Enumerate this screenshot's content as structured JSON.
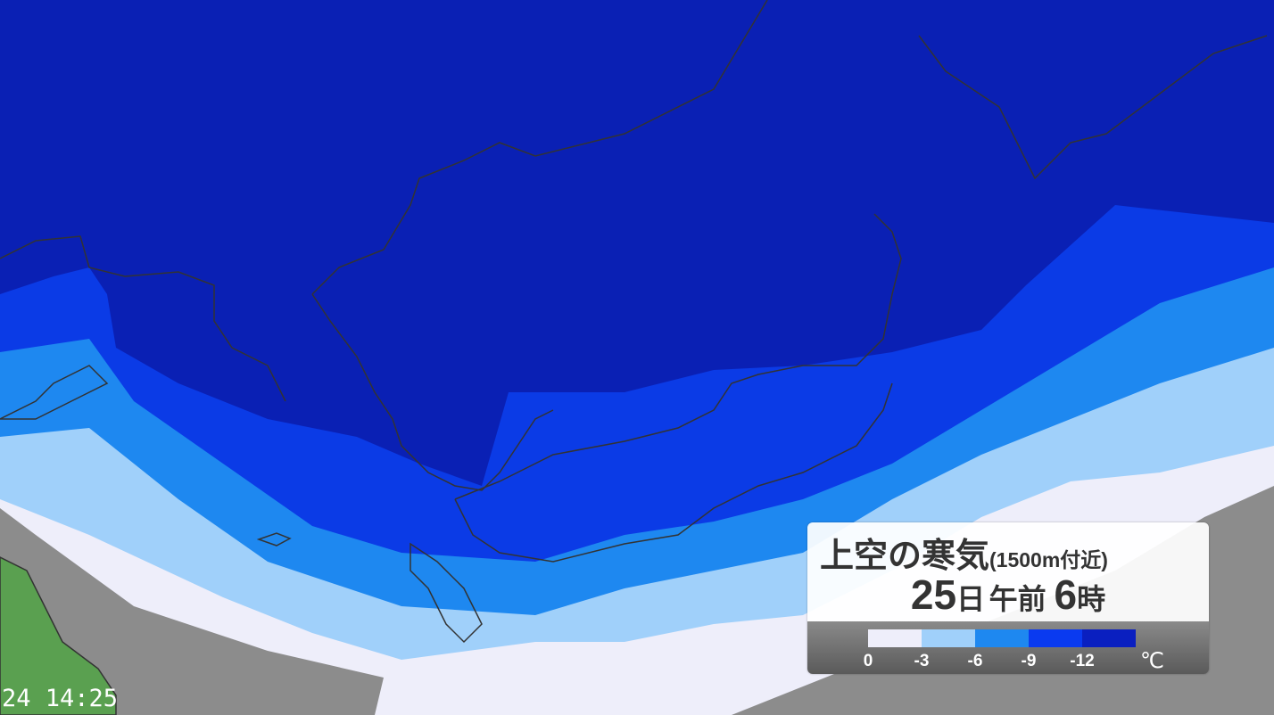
{
  "timestamp": "24 14:25",
  "legend": {
    "title": "上空の寒気",
    "subtitle": "(1500m付近)",
    "day": "25",
    "day_unit": "日",
    "ampm": "午前",
    "hour": "6",
    "hour_unit": "時",
    "unit": "℃",
    "ticks": [
      "0",
      "-3",
      "-6",
      "-9",
      "-12"
    ],
    "colors": [
      "#eeeefa",
      "#a0d0fa",
      "#1e88f0",
      "#0a3af0",
      "#0a1fc0"
    ]
  },
  "map_colors": {
    "below_-12": "#0a20b4",
    "-12_to_-9": "#0b3be6",
    "-9_to_-6": "#1e88f0",
    "-6_to_-3": "#a0d0fa",
    "-3_to_0": "#eeeefa",
    "above_0": "#8c8c8c",
    "land": "#5aa050"
  }
}
